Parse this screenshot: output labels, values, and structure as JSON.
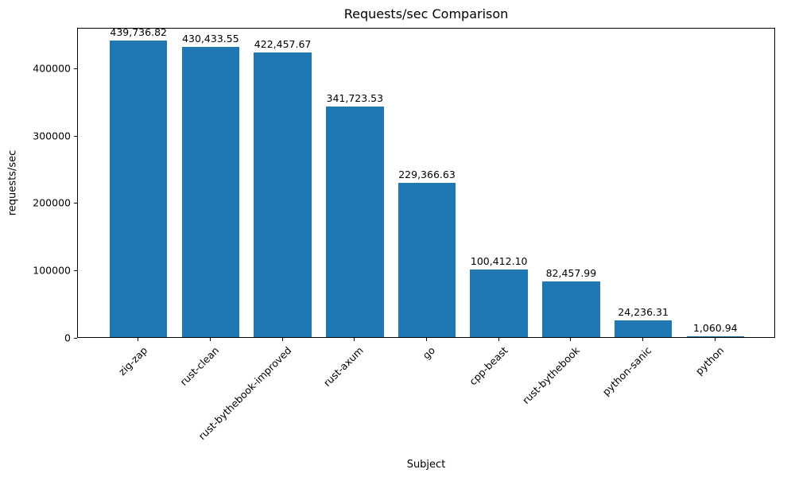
{
  "chart_data": {
    "type": "bar",
    "title": "Requests/sec Comparison",
    "xlabel": "Subject",
    "ylabel": "requests/sec",
    "categories": [
      "zig-zap",
      "rust-clean",
      "rust-bythebook-improved",
      "rust-axum",
      "go",
      "cpp-beast",
      "rust-bythebook",
      "python-sanic",
      "python"
    ],
    "values": [
      439736.82,
      430433.55,
      422457.67,
      341723.53,
      229366.63,
      100412.1,
      82457.99,
      24236.31,
      1060.94
    ],
    "value_labels": [
      "439,736.82",
      "430,433.55",
      "422,457.67",
      "341,723.53",
      "229,366.63",
      "100,412.10",
      "82,457.99",
      "24,236.31",
      "1,060.94"
    ],
    "y_ticks": [
      0,
      100000,
      200000,
      300000,
      400000
    ],
    "ylim": [
      0,
      460000
    ],
    "bar_color": "#1f77b4",
    "grid": false,
    "legend": null,
    "x_tick_rotation": 45
  }
}
